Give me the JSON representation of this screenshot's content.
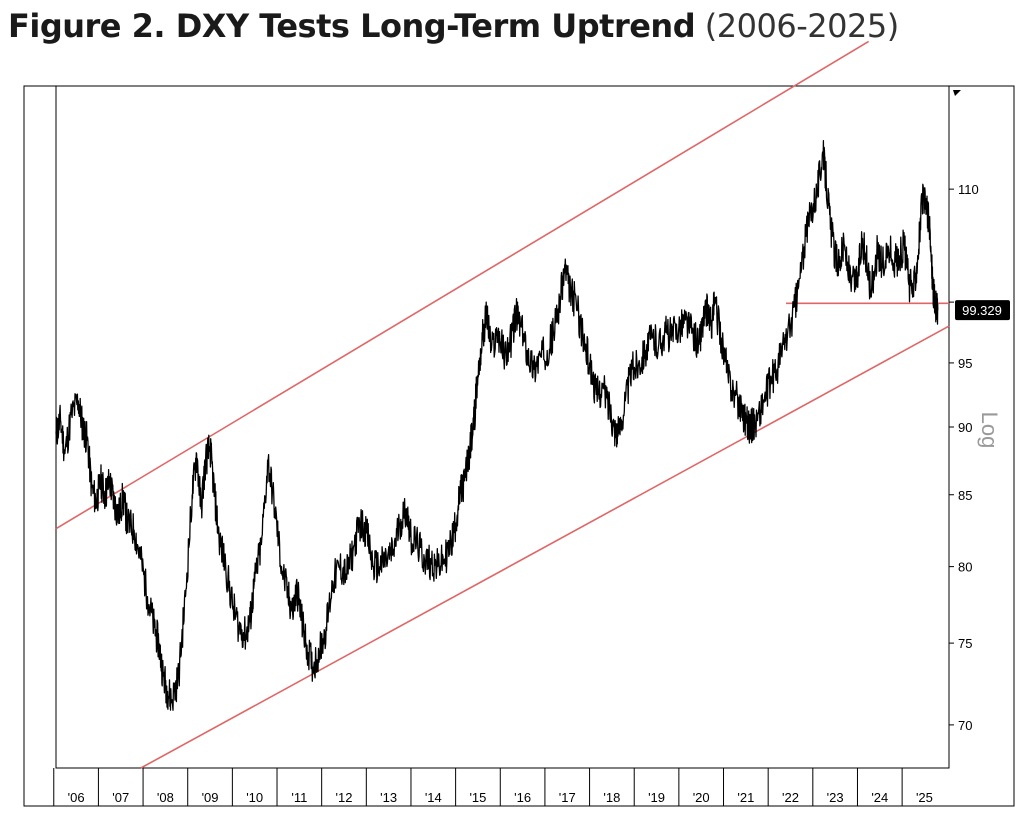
{
  "header": {
    "title": "Figure 2. DXY Tests Long-Term Uptrend",
    "subtitle": "(2006-2025)"
  },
  "chart_data": {
    "type": "line",
    "title": "Figure 2. DXY Tests Long-Term Uptrend",
    "subtitle": "(2006-2025)",
    "ylabel": "Log",
    "y_scale": "log",
    "ylim": [
      67.5,
      120
    ],
    "xlim": [
      2005.55,
      2025.55
    ],
    "grid": false,
    "y_ticks": [
      70,
      75,
      80,
      85,
      90,
      95,
      100,
      110
    ],
    "y_tick_labels": [
      "70",
      "75",
      "80",
      "85",
      "90",
      "95",
      "",
      "110"
    ],
    "x_ticks": [
      2006,
      2007,
      2008,
      2009,
      2010,
      2011,
      2012,
      2013,
      2014,
      2015,
      2016,
      2017,
      2018,
      2019,
      2020,
      2021,
      2022,
      2023,
      2024,
      2025
    ],
    "x_tick_labels": [
      "'06",
      "'07",
      "'08",
      "'09",
      "'10",
      "'11",
      "'12",
      "'13",
      "'14",
      "'15",
      "'16",
      "'17",
      "'18",
      "'19",
      "'20",
      "'21",
      "'22",
      "'23",
      "'24",
      "'25"
    ],
    "last_value_label": "99.329",
    "series": [
      {
        "color": "#000000",
        "x": [
          2005.55,
          2005.65,
          2005.75,
          2005.9,
          2006.05,
          2006.15,
          2006.25,
          2006.35,
          2006.45,
          2006.55,
          2006.65,
          2006.75,
          2006.85,
          2006.95,
          2007.05,
          2007.15,
          2007.3,
          2007.45,
          2007.6,
          2007.75,
          2007.85,
          2007.95,
          2008.05,
          2008.15,
          2008.3,
          2008.45,
          2008.6,
          2008.7,
          2008.8,
          2008.9,
          2009.0,
          2009.1,
          2009.2,
          2009.35,
          2009.5,
          2009.65,
          2009.8,
          2009.9,
          2010.0,
          2010.15,
          2010.3,
          2010.45,
          2010.6,
          2010.75,
          2010.85,
          2010.95,
          2011.05,
          2011.15,
          2011.3,
          2011.45,
          2011.6,
          2011.75,
          2011.9,
          2012.05,
          2012.2,
          2012.35,
          2012.5,
          2012.65,
          2012.8,
          2012.95,
          2013.1,
          2013.25,
          2013.4,
          2013.5,
          2013.65,
          2013.8,
          2013.95,
          2014.1,
          2014.25,
          2014.4,
          2014.5,
          2014.6,
          2014.7,
          2014.8,
          2014.9,
          2015.0,
          2015.1,
          2015.2,
          2015.3,
          2015.45,
          2015.6,
          2015.75,
          2015.85,
          2015.95,
          2016.1,
          2016.25,
          2016.4,
          2016.55,
          2016.7,
          2016.85,
          2016.95,
          2017.05,
          2017.2,
          2017.35,
          2017.5,
          2017.65,
          2017.8,
          2017.95,
          2018.05,
          2018.15,
          2018.3,
          2018.45,
          2018.6,
          2018.75,
          2018.9,
          2019.05,
          2019.2,
          2019.35,
          2019.5,
          2019.65,
          2019.8,
          2019.95,
          2020.05,
          2020.15,
          2020.22,
          2020.3,
          2020.45,
          2020.6,
          2020.75,
          2020.9,
          2021.0,
          2021.1,
          2021.25,
          2021.4,
          2021.55,
          2021.7,
          2021.85,
          2022.0,
          2022.15,
          2022.3,
          2022.45,
          2022.6,
          2022.72,
          2022.8,
          2022.9,
          2023.0,
          2023.1,
          2023.2,
          2023.35,
          2023.5,
          2023.6,
          2023.7,
          2023.8,
          2023.95,
          2024.05,
          2024.2,
          2024.35,
          2024.45,
          2024.55,
          2024.65,
          2024.75,
          2024.85,
          2024.95,
          2025.05,
          2025.1,
          2025.15,
          2025.2,
          2025.25,
          2025.3
        ],
        "values": [
          89.5,
          90.5,
          88.0,
          91.0,
          92.0,
          90.0,
          89.0,
          85.5,
          84.5,
          86.0,
          85.0,
          86.0,
          84.5,
          83.5,
          84.8,
          83.0,
          82.5,
          80.5,
          78.0,
          76.0,
          75.0,
          73.0,
          72.0,
          71.5,
          73.0,
          78.0,
          85.0,
          88.0,
          84.0,
          87.5,
          88.5,
          85.0,
          82.0,
          80.0,
          77.5,
          76.0,
          75.5,
          76.5,
          79.0,
          81.5,
          87.5,
          84.0,
          80.0,
          78.0,
          77.0,
          78.5,
          76.5,
          75.0,
          73.5,
          74.5,
          76.0,
          79.0,
          80.0,
          79.5,
          81.0,
          83.0,
          82.5,
          80.0,
          80.0,
          80.5,
          81.0,
          83.0,
          84.0,
          82.0,
          81.5,
          80.5,
          80.3,
          80.0,
          80.5,
          81.5,
          83.0,
          85.0,
          86.0,
          88.0,
          90.0,
          94.0,
          97.0,
          99.0,
          96.0,
          97.5,
          95.5,
          97.0,
          99.0,
          98.0,
          96.0,
          94.5,
          95.5,
          96.0,
          97.5,
          100.5,
          103.0,
          101.0,
          100.0,
          97.0,
          95.0,
          92.5,
          93.0,
          91.5,
          90.0,
          89.5,
          92.0,
          94.5,
          95.0,
          96.0,
          97.0,
          96.5,
          97.5,
          97.2,
          98.0,
          98.5,
          97.5,
          96.5,
          98.5,
          99.5,
          98.0,
          100.0,
          97.0,
          94.0,
          92.5,
          91.5,
          90.5,
          90.0,
          90.5,
          92.0,
          93.5,
          94.5,
          96.5,
          98.0,
          100.5,
          104.5,
          108.0,
          110.0,
          113.5,
          111.0,
          106.5,
          104.0,
          103.5,
          105.0,
          101.5,
          102.0,
          105.5,
          103.5,
          101.0,
          104.5,
          103.0,
          104.5,
          103.5,
          104.0,
          105.0,
          101.5,
          101.0,
          104.0,
          109.0,
          108.5,
          107.0,
          104.0,
          101.0,
          99.5,
          99.329
        ]
      }
    ],
    "trend_lines": [
      {
        "name": "upper channel",
        "color": "#e06666",
        "x": [
          2005.55,
          2023.75
        ],
        "y": [
          82.6,
          124.6
        ]
      },
      {
        "name": "lower channel",
        "color": "#e06666",
        "x": [
          2007.45,
          2025.55
        ],
        "y": [
          67.5,
          98.0
        ]
      },
      {
        "name": "support level",
        "color": "#e06666",
        "x": [
          2021.9,
          2025.55
        ],
        "y": [
          99.9,
          99.9
        ]
      }
    ],
    "colors": {
      "series": "#000000",
      "trend": "#e06666",
      "frame": "#000000",
      "label_bg": "#000000",
      "label_text": "#ffffff"
    }
  }
}
